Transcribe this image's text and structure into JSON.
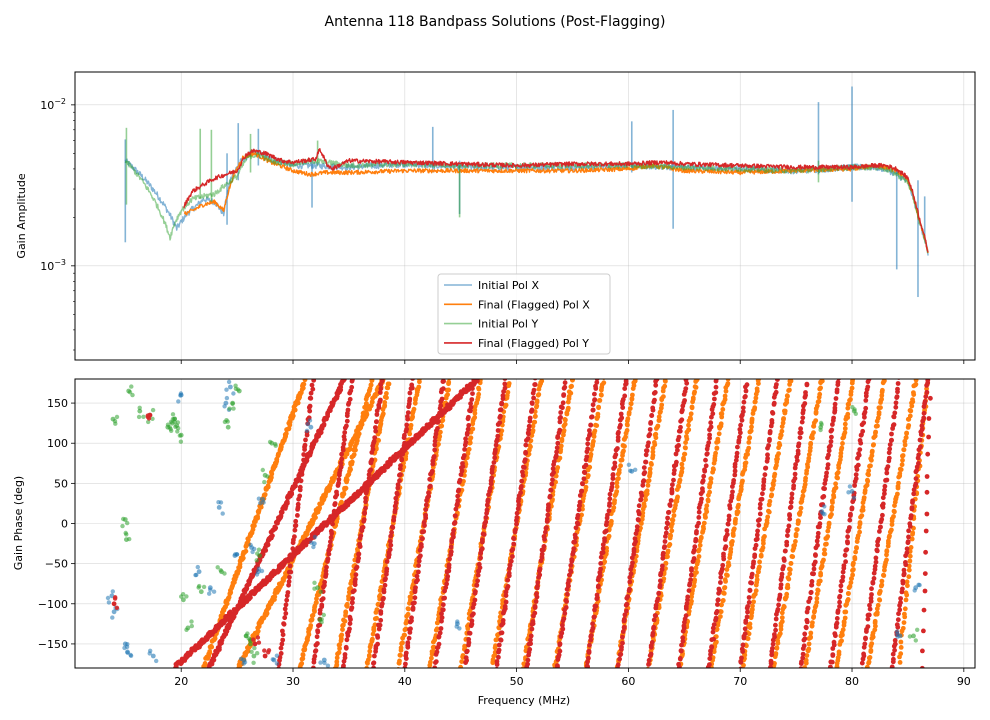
{
  "figure": {
    "title": "Antenna 118 Bandpass Solutions (Post-Flagging)"
  },
  "colors": {
    "pol_x_initial": "#1f77b4",
    "pol_x_final": "#ff7f0e",
    "pol_y_initial": "#2ca02c",
    "pol_y_final": "#d62728"
  },
  "chart_data": [
    {
      "type": "line",
      "panel": "amplitude",
      "ylabel": "Gain Amplitude",
      "xlabel": "",
      "yscale": "log",
      "ylim": [
        0.00026,
        0.016
      ],
      "xlim": [
        10.5,
        91
      ],
      "grid": true,
      "x_ticks": [
        20,
        30,
        40,
        50,
        60,
        70,
        80,
        90
      ],
      "y_ticks": [
        {
          "value": 0.001,
          "base": "10",
          "exp": "−3"
        },
        {
          "value": 0.01,
          "base": "10",
          "exp": "−2"
        }
      ],
      "legend": {
        "placement": "lower-center",
        "entries": [
          "Initial Pol X",
          "Final (Flagged) Pol X",
          "Initial Pol Y",
          "Final (Flagged) Pol Y"
        ]
      },
      "series": [
        {
          "name": "Initial Pol X",
          "color": "#1f77b4",
          "opacity": 0.55,
          "x": [
            15,
            19.6,
            20.5,
            21.5,
            22,
            23,
            23.8,
            24.5,
            25.5,
            26.5,
            28,
            30,
            32,
            35,
            40,
            45,
            50,
            55,
            60,
            65,
            70,
            75,
            80,
            82,
            83,
            84,
            85,
            86,
            86.8
          ],
          "y": [
            0.0045,
            0.0017,
            0.0021,
            0.0024,
            0.0026,
            0.0025,
            0.0021,
            0.0036,
            0.0046,
            0.0051,
            0.0046,
            0.0042,
            0.0042,
            0.0041,
            0.0043,
            0.0041,
            0.0041,
            0.0041,
            0.0042,
            0.0041,
            0.004,
            0.0039,
            0.0041,
            0.0041,
            0.004,
            0.0037,
            0.0033,
            0.0019,
            0.0012
          ],
          "spikes": [
            [
              15,
              0.0014,
              0.0061
            ],
            [
              24.1,
              0.0018,
              0.005
            ],
            [
              25.1,
              0.0034,
              0.0077
            ],
            [
              26.9,
              0.0042,
              0.0071
            ],
            [
              31.7,
              0.0023,
              0.0047
            ],
            [
              42.5,
              0.0038,
              0.0073
            ],
            [
              44.9,
              0.0021,
              0.0045
            ],
            [
              60.3,
              0.0038,
              0.0079
            ],
            [
              64,
              0.0017,
              0.0093
            ],
            [
              77,
              0.0037,
              0.0104
            ],
            [
              80,
              0.0025,
              0.013
            ],
            [
              84,
              0.00095,
              0.0039
            ],
            [
              85.9,
              0.00064,
              0.0034
            ],
            [
              86.5,
              0.0015,
              0.0027
            ]
          ]
        },
        {
          "name": "Final (Flagged) Pol X",
          "color": "#ff7f0e",
          "opacity": 1,
          "x": [
            20.3,
            21,
            22,
            23,
            23.8,
            24.6,
            25.5,
            26.5,
            28,
            30,
            31.5,
            33,
            35,
            40,
            45,
            50,
            55,
            60,
            62,
            65,
            70,
            75,
            80,
            82,
            83,
            84,
            85,
            86,
            86.8
          ],
          "y": [
            0.0021,
            0.0022,
            0.0024,
            0.0025,
            0.0022,
            0.0035,
            0.0047,
            0.005,
            0.0044,
            0.0039,
            0.0037,
            0.0038,
            0.0038,
            0.0039,
            0.0039,
            0.0039,
            0.0039,
            0.004,
            0.0042,
            0.0039,
            0.0038,
            0.0039,
            0.004,
            0.0042,
            0.0041,
            0.0039,
            0.0034,
            0.0019,
            0.0012
          ],
          "spikes": []
        },
        {
          "name": "Initial Pol Y",
          "color": "#2ca02c",
          "opacity": 0.5,
          "x": [
            15,
            19,
            19.5,
            20,
            20.5,
            21,
            22,
            23,
            24,
            25,
            26,
            27,
            28,
            30,
            32,
            35,
            40,
            45,
            50,
            55,
            60,
            65,
            70,
            75,
            80,
            82,
            83,
            84,
            85,
            86,
            86.8
          ],
          "y": [
            0.0045,
            0.0015,
            0.0019,
            0.0022,
            0.0024,
            0.0026,
            0.0027,
            0.0028,
            0.0032,
            0.0036,
            0.0048,
            0.0049,
            0.0045,
            0.0043,
            0.0045,
            0.0042,
            0.0043,
            0.0042,
            0.0042,
            0.0042,
            0.0042,
            0.0041,
            0.004,
            0.0039,
            0.0041,
            0.0041,
            0.004,
            0.0037,
            0.0033,
            0.0019,
            0.0012
          ],
          "spikes": [
            [
              15.1,
              0.0024,
              0.0072
            ],
            [
              21.7,
              0.0026,
              0.0071
            ],
            [
              22.7,
              0.0025,
              0.007
            ],
            [
              26.2,
              0.0038,
              0.0066
            ],
            [
              32.2,
              0.0042,
              0.006
            ],
            [
              44.9,
              0.002,
              0.0042
            ],
            [
              77,
              0.0033,
              0.0045
            ]
          ]
        },
        {
          "name": "Final (Flagged) Pol Y",
          "color": "#d62728",
          "opacity": 1,
          "x": [
            20.2,
            21,
            22,
            23,
            24,
            25,
            25.8,
            26.5,
            27.5,
            29,
            30,
            31,
            32,
            32.4,
            33,
            33.5,
            35,
            40,
            45,
            50,
            55,
            60,
            63,
            65,
            70,
            75,
            80,
            82,
            83,
            84,
            85,
            86,
            86.8
          ],
          "y": [
            0.0023,
            0.0029,
            0.0032,
            0.0035,
            0.0037,
            0.0039,
            0.0049,
            0.0052,
            0.005,
            0.0045,
            0.0044,
            0.0045,
            0.0046,
            0.0053,
            0.0043,
            0.004,
            0.0045,
            0.0044,
            0.0043,
            0.0042,
            0.0043,
            0.0043,
            0.0044,
            0.0043,
            0.0042,
            0.0041,
            0.0041,
            0.0042,
            0.0042,
            0.004,
            0.0035,
            0.002,
            0.0012
          ],
          "spikes": []
        }
      ]
    },
    {
      "type": "scatter",
      "panel": "phase",
      "ylabel": "Gain Phase (deg)",
      "xlabel": "Frequency (MHz)",
      "ylim": [
        -180,
        180
      ],
      "xlim": [
        10.5,
        91
      ],
      "grid": true,
      "x_ticks": [
        20,
        30,
        40,
        50,
        60,
        70,
        80,
        90
      ],
      "y_ticks": [
        -150,
        -100,
        -50,
        0,
        50,
        100,
        150
      ],
      "wrap_lines": {
        "Final (Flagged) Pol X": [
          [
            22.0,
            31.1
          ],
          [
            25.1,
            38.1
          ],
          [
            30.6,
            37.1
          ],
          [
            33.8,
            38.6
          ],
          [
            36.6,
            41.3
          ],
          [
            39.4,
            44.0
          ],
          [
            42.2,
            46.8
          ],
          [
            45.0,
            49.4
          ],
          [
            47.8,
            52.2
          ],
          [
            50.6,
            55.0
          ],
          [
            53.4,
            57.8
          ],
          [
            56.2,
            60.6
          ],
          [
            59.0,
            63.3
          ],
          [
            61.8,
            66.1
          ],
          [
            64.6,
            68.9
          ],
          [
            67.4,
            71.7
          ],
          [
            70.2,
            74.5
          ],
          [
            73.0,
            77.3
          ],
          [
            75.8,
            80.1
          ],
          [
            78.6,
            82.9
          ],
          [
            81.4,
            85.7
          ],
          [
            84.2,
            86.8
          ]
        ],
        "Final (Flagged) Pol Y": [
          [
            19.4,
            46.5
          ],
          [
            22.5,
            34.6
          ],
          [
            28.7,
            31.8
          ],
          [
            31.8,
            35.3
          ],
          [
            34.5,
            38.0
          ],
          [
            37.2,
            40.7
          ],
          [
            40.0,
            43.5
          ],
          [
            42.7,
            46.2
          ],
          [
            45.4,
            49.0
          ],
          [
            48.2,
            51.7
          ],
          [
            50.9,
            54.4
          ],
          [
            53.6,
            57.2
          ],
          [
            56.3,
            59.8
          ],
          [
            59.1,
            62.5
          ],
          [
            61.8,
            65.2
          ],
          [
            64.5,
            67.9
          ],
          [
            67.2,
            70.6
          ],
          [
            70.0,
            73.3
          ],
          [
            72.7,
            76.0
          ],
          [
            75.4,
            78.8
          ],
          [
            78.1,
            81.5
          ],
          [
            80.9,
            84.2
          ],
          [
            83.6,
            86.8
          ],
          [
            86.3,
            87.0
          ]
        ]
      },
      "series": [
        {
          "name": "Initial Pol X",
          "color": "#1f77b4",
          "opacity": 0.6,
          "x": [
            13.8,
            14.0,
            15.0,
            15.2,
            17.5,
            20.0,
            21.6,
            22.6,
            23.4,
            24.0,
            24.4,
            24.8,
            25.6,
            26.3,
            26.9,
            27.3,
            28.3,
            31.6,
            31.9,
            32.8,
            44.7,
            60.3,
            77.3,
            80.0,
            84.3,
            85.7
          ],
          "y": [
            -90,
            -110,
            -150,
            -160,
            -165,
            160,
            -60,
            -80,
            20,
            150,
            170,
            -40,
            -170,
            -30,
            -60,
            30,
            -170,
            120,
            -25,
            -170,
            -125,
            65,
            15,
            40,
            -140,
            -80
          ]
        },
        {
          "name": "Initial Pol Y",
          "color": "#2ca02c",
          "opacity": 0.6,
          "x": [
            13.9,
            15.0,
            15.1,
            15.3,
            16.3,
            17.2,
            18.8,
            19.2,
            19.4,
            19.6,
            20.0,
            20.2,
            20.6,
            21.8,
            23.6,
            24.2,
            24.6,
            25.2,
            25.8,
            26.2,
            26.5,
            27.0,
            27.5,
            28.1,
            32.2,
            32.4,
            77.2,
            80.2,
            85.5
          ],
          "y": [
            130,
            5,
            -20,
            165,
            140,
            135,
            120,
            125,
            130,
            122,
            110,
            -95,
            -130,
            -85,
            -60,
            120,
            150,
            165,
            -140,
            -150,
            -165,
            -40,
            60,
            100,
            -80,
            -120,
            120,
            140,
            -140
          ]
        },
        {
          "name": "Final (Flagged) Pol X",
          "color": "#ff7f0e",
          "opacity": 1,
          "x": [],
          "y": []
        },
        {
          "name": "Final (Flagged) Pol Y",
          "color": "#d62728",
          "opacity": 1,
          "x": [
            14.0,
            17.2,
            26.6,
            27.5
          ],
          "y": [
            -100,
            135,
            -150,
            -165
          ]
        }
      ]
    }
  ]
}
